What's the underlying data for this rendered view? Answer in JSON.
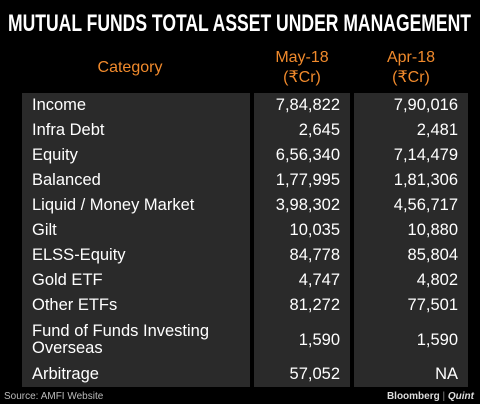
{
  "header": {
    "title": "MUTUAL FUNDS TOTAL ASSET UNDER MANAGEMENT"
  },
  "table": {
    "columns": [
      [
        "Category"
      ],
      [
        "May-18",
        "(₹Cr)"
      ],
      [
        "Apr-18",
        "(₹Cr)"
      ]
    ],
    "rows": [
      [
        "Income",
        "7,84,822",
        "7,90,016"
      ],
      [
        "Infra Debt",
        "2,645",
        "2,481"
      ],
      [
        "Equity",
        "6,56,340",
        "7,14,479"
      ],
      [
        "Balanced",
        "1,77,995",
        "1,81,306"
      ],
      [
        "Liquid / Money Market",
        "3,98,302",
        "4,56,717"
      ],
      [
        "Gilt",
        "10,035",
        "10,880"
      ],
      [
        "ELSS-Equity",
        "84,778",
        "85,804"
      ],
      [
        "Gold ETF",
        "4,747",
        "4,802"
      ],
      [
        "Other ETFs",
        "81,272",
        "77,501"
      ],
      [
        "Fund of Funds Investing Overseas",
        "1,590",
        "1,590"
      ],
      [
        "Arbitrage",
        "57,052",
        "NA"
      ]
    ]
  },
  "footer": {
    "source": "Source: AMFI Website",
    "brand": "Bloomberg",
    "brand2": "Quint"
  }
}
